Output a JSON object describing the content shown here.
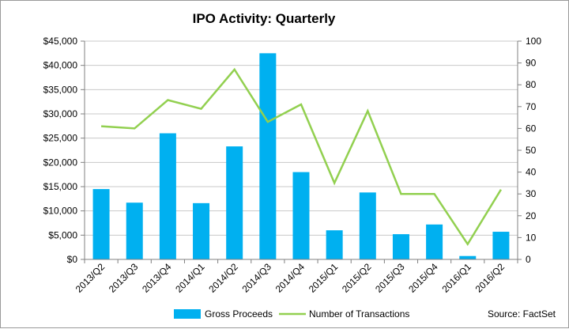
{
  "chart_data": {
    "type": "bar",
    "title": "IPO Activity: Quarterly",
    "categories": [
      "2013/Q2",
      "2013/Q3",
      "2013/Q4",
      "2014/Q1",
      "2014/Q2",
      "2014/Q3",
      "2014/Q4",
      "2015/Q1",
      "2015/Q2",
      "2015/Q3",
      "2015/Q4",
      "2016/Q1",
      "2016/Q2"
    ],
    "series": [
      {
        "name": "Gross Proceeds",
        "type": "bar",
        "axis": "left",
        "color": "#00b0f0",
        "values": [
          14500,
          11700,
          26000,
          11600,
          23300,
          42500,
          18000,
          6000,
          13800,
          5200,
          7200,
          700,
          5700
        ]
      },
      {
        "name": "Number of Transactions",
        "type": "line",
        "axis": "right",
        "color": "#92d050",
        "values": [
          61,
          60,
          73,
          69,
          87,
          63,
          71,
          35,
          68,
          30,
          30,
          7,
          32
        ]
      }
    ],
    "y_left": {
      "lim": [
        0,
        45000
      ],
      "ticks": [
        0,
        5000,
        10000,
        15000,
        20000,
        25000,
        30000,
        35000,
        40000,
        45000
      ],
      "tick_labels": [
        "$0",
        "$5,000",
        "$10,000",
        "$15,000",
        "$20,000",
        "$25,000",
        "$30,000",
        "$35,000",
        "$40,000",
        "$45,000"
      ]
    },
    "y_right": {
      "lim": [
        0,
        100
      ],
      "ticks": [
        0,
        10,
        20,
        30,
        40,
        50,
        60,
        70,
        80,
        90,
        100
      ],
      "tick_labels": [
        "0",
        "10",
        "20",
        "30",
        "40",
        "50",
        "60",
        "70",
        "80",
        "90",
        "100"
      ]
    },
    "grid": true,
    "legend": "bottom",
    "source": "Source: FactSet"
  }
}
